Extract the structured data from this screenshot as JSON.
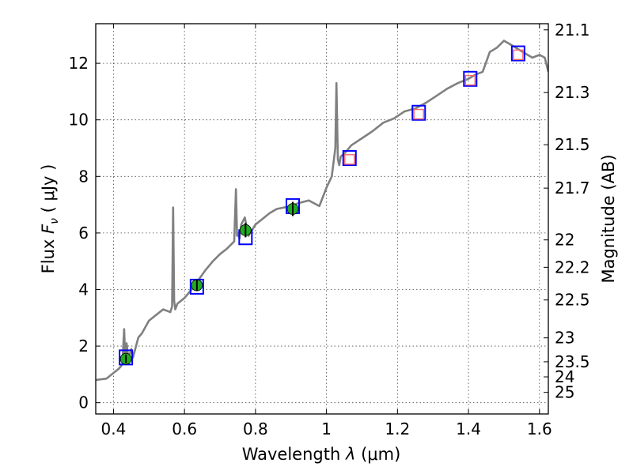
{
  "chart_data": {
    "type": "scatter",
    "title": "",
    "xlabel": "Wavelength",
    "xlabel_symbol": "λ",
    "xlabel_unit": "(μm)",
    "ylabel": "Flux",
    "ylabel_symbol": "F",
    "ylabel_symbol_sub": "ν",
    "ylabel_unit": "( μJy )",
    "ylabel_right": "Magnitude (AB)",
    "xlim": [
      0.35,
      1.625
    ],
    "ylim": [
      -0.4,
      13.4
    ],
    "grid": true,
    "x_ticks": [
      0.4,
      0.6,
      0.8,
      1.0,
      1.2,
      1.4,
      1.6
    ],
    "x_tick_labels": [
      "0.4",
      "0.6",
      "0.8",
      "1",
      "1.2",
      "1.4",
      "1.6"
    ],
    "y_ticks": [
      0,
      2,
      4,
      6,
      8,
      10,
      12
    ],
    "y_tick_labels": [
      "0",
      "2",
      "4",
      "6",
      "8",
      "10",
      "12"
    ],
    "right_ticks": [
      {
        "label": "21.1",
        "mag": 21.1
      },
      {
        "label": "21.3",
        "mag": 21.3
      },
      {
        "label": "21.5",
        "mag": 21.5
      },
      {
        "label": "21.7",
        "mag": 21.7
      },
      {
        "label": "22",
        "mag": 22.0
      },
      {
        "label": "22.2",
        "mag": 22.2
      },
      {
        "label": "22.5",
        "mag": 22.5
      },
      {
        "label": "23",
        "mag": 23.0
      },
      {
        "label": "23.5",
        "mag": 23.5
      },
      {
        "label": "24",
        "mag": 24.0
      },
      {
        "label": "25",
        "mag": 25.0
      }
    ],
    "series": [
      {
        "kind": "spectrum",
        "color": "#808080",
        "x": [
          0.35,
          0.38,
          0.4,
          0.415,
          0.425,
          0.43,
          0.433,
          0.437,
          0.442,
          0.45,
          0.455,
          0.47,
          0.48,
          0.5,
          0.52,
          0.54,
          0.56,
          0.565,
          0.568,
          0.571,
          0.574,
          0.58,
          0.6,
          0.62,
          0.64,
          0.66,
          0.68,
          0.7,
          0.72,
          0.74,
          0.745,
          0.748,
          0.751,
          0.755,
          0.76,
          0.77,
          0.78,
          0.8,
          0.82,
          0.84,
          0.86,
          0.88,
          0.9,
          0.92,
          0.95,
          0.98,
          1.0,
          1.015,
          1.025,
          1.028,
          1.032,
          1.036,
          1.04,
          1.05,
          1.07,
          1.1,
          1.13,
          1.16,
          1.19,
          1.22,
          1.25,
          1.28,
          1.31,
          1.34,
          1.37,
          1.4,
          1.42,
          1.44,
          1.46,
          1.48,
          1.5,
          1.52,
          1.54,
          1.56,
          1.58,
          1.6,
          1.615,
          1.625
        ],
        "y": [
          0.8,
          0.85,
          1.05,
          1.2,
          1.35,
          2.6,
          1.6,
          2.1,
          1.55,
          1.9,
          1.6,
          2.3,
          2.45,
          2.9,
          3.1,
          3.3,
          3.2,
          3.4,
          6.9,
          3.6,
          3.3,
          3.5,
          3.7,
          4.0,
          4.35,
          4.7,
          5.0,
          5.25,
          5.45,
          5.7,
          7.55,
          5.9,
          6.0,
          5.8,
          6.3,
          6.55,
          5.9,
          6.3,
          6.5,
          6.7,
          6.85,
          6.9,
          6.95,
          7.05,
          7.15,
          6.95,
          7.6,
          8.0,
          9.0,
          11.3,
          8.6,
          8.4,
          8.7,
          8.8,
          9.1,
          9.35,
          9.6,
          9.9,
          10.05,
          10.3,
          10.4,
          10.6,
          10.85,
          11.1,
          11.3,
          11.45,
          11.6,
          11.7,
          12.4,
          12.55,
          12.8,
          12.65,
          12.5,
          12.35,
          12.2,
          12.3,
          12.2,
          11.7
        ]
      },
      {
        "kind": "model_photometry",
        "marker": "square",
        "color": "#0000ff",
        "x": [
          0.435,
          0.635,
          0.772,
          0.905,
          1.065,
          1.26,
          1.405,
          1.54
        ],
        "y": [
          1.6,
          4.1,
          5.85,
          6.95,
          8.65,
          10.25,
          11.45,
          12.35
        ]
      },
      {
        "kind": "observed_optical",
        "marker": "circle",
        "color": "#22aa22",
        "x": [
          0.435,
          0.635,
          0.772,
          0.905
        ],
        "y": [
          1.55,
          4.15,
          6.1,
          6.85
        ],
        "err": [
          0.15,
          0.2,
          0.25,
          0.25
        ]
      },
      {
        "kind": "observed_nir",
        "marker": "square",
        "color": "#ff6666",
        "x": [
          1.065,
          1.26,
          1.405,
          1.54
        ],
        "y": [
          8.6,
          10.2,
          11.4,
          12.3
        ]
      }
    ]
  }
}
